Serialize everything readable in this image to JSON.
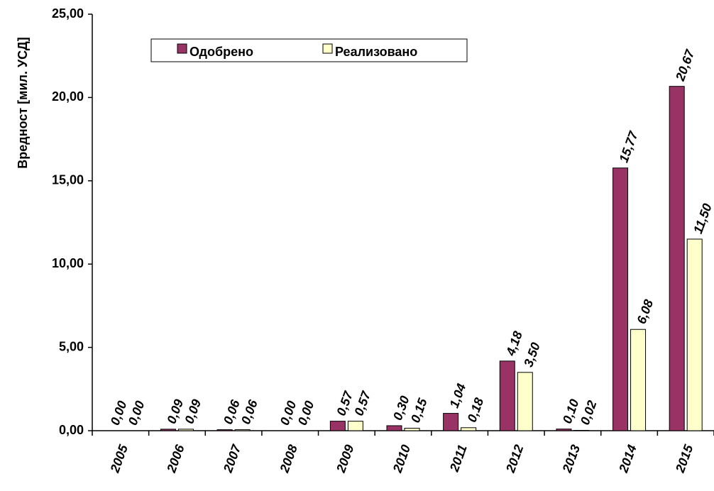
{
  "chart_data": {
    "type": "bar",
    "y_label": "Вредност [мил. УСД]",
    "categories": [
      "2005",
      "2006",
      "2007",
      "2008",
      "2009",
      "2010",
      "2011",
      "2012",
      "2013",
      "2014",
      "2015"
    ],
    "series": [
      {
        "name": "Одобрено",
        "color": "#993366",
        "values": [
          0,
          0.09,
          0.06,
          0,
          0.57,
          0.3,
          1.04,
          4.18,
          0.1,
          15.77,
          20.67
        ],
        "value_labels": [
          "0,00",
          "0,09",
          "0,06",
          "0,00",
          "0,57",
          "0,30",
          "1,04",
          "4,18",
          "0,10",
          "15,77",
          "20,67"
        ]
      },
      {
        "name": "Реализовано",
        "color": "#ffffcc",
        "values": [
          0,
          0.09,
          0.06,
          0,
          0.57,
          0.15,
          0.18,
          3.5,
          0.02,
          6.08,
          11.5
        ],
        "value_labels": [
          "0,00",
          "0,09",
          "0,06",
          "0,00",
          "0,57",
          "0,15",
          "0,18",
          "3,50",
          "0,02",
          "6,08",
          "11,50"
        ]
      }
    ],
    "ylim": [
      0,
      25
    ],
    "yticks": [
      {
        "value": 0,
        "label": "0,00"
      },
      {
        "value": 5,
        "label": "5,00"
      },
      {
        "value": 10,
        "label": "10,00"
      },
      {
        "value": 15,
        "label": "15,00"
      },
      {
        "value": 20,
        "label": "20,00"
      },
      {
        "value": 25,
        "label": "25,00"
      }
    ],
    "grid": false
  }
}
